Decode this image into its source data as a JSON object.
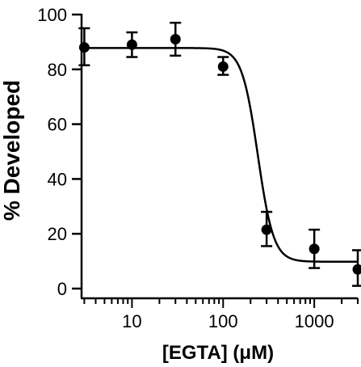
{
  "chart_data": {
    "type": "scatter",
    "xlabel": "[EGTA] (μM)",
    "ylabel": "% Developed",
    "x_scale": "log",
    "xlim": [
      2.8,
      3000
    ],
    "ylim": [
      0,
      100
    ],
    "x_ticks": [
      10,
      100,
      1000
    ],
    "x_tick_labels": [
      "10",
      "100",
      "1000"
    ],
    "y_ticks": [
      0,
      20,
      40,
      60,
      80,
      100
    ],
    "y_tick_labels": [
      "0",
      "20",
      "40",
      "60",
      "80",
      "100"
    ],
    "grid": false,
    "legend": "none",
    "points": [
      {
        "x": 3,
        "y": 88,
        "err_low": 81.5,
        "err_high": 95
      },
      {
        "x": 10,
        "y": 89,
        "err_low": 84.5,
        "err_high": 93.5
      },
      {
        "x": 30,
        "y": 91,
        "err_low": 85,
        "err_high": 97
      },
      {
        "x": 100,
        "y": 81,
        "err_low": 78,
        "err_high": 84.5
      },
      {
        "x": 300,
        "y": 21.5,
        "err_low": 15.5,
        "err_high": 28
      },
      {
        "x": 1000,
        "y": 14.5,
        "err_low": 7.5,
        "err_high": 21.5
      },
      {
        "x": 3000,
        "y": 7,
        "err_low": 1,
        "err_high": 14
      }
    ],
    "fit_curve": {
      "model": "sigmoidal dose-response",
      "top": 87.8,
      "bottom": 9.8,
      "ec50": 240,
      "hill": 5
    },
    "colors": {
      "marks": "#000000",
      "axes": "#000000"
    }
  }
}
